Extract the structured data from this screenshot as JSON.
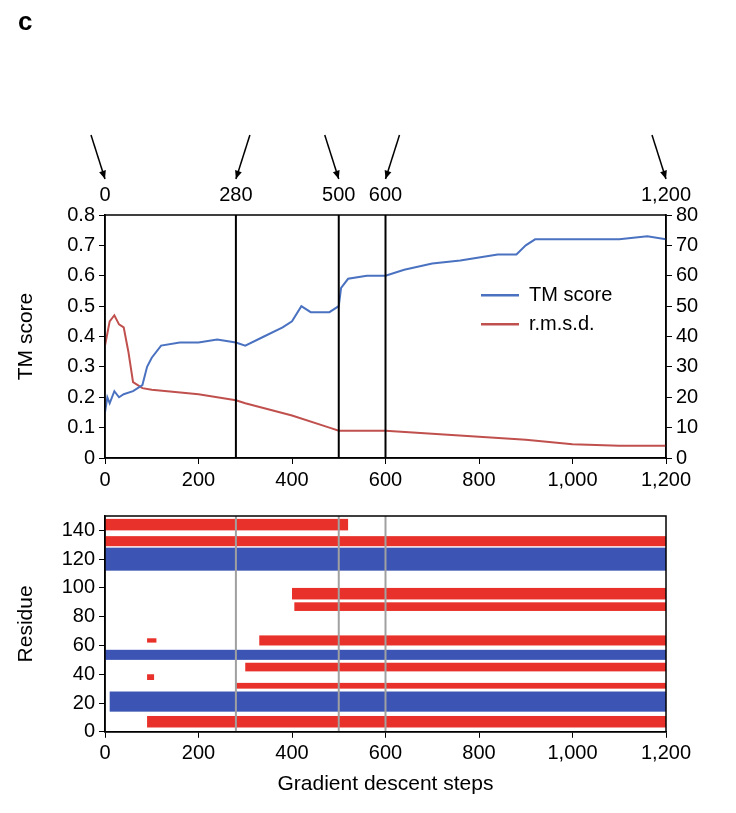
{
  "panel": "c",
  "chart_data": [
    {
      "type": "line",
      "xlim": [
        0,
        1200
      ],
      "xticks": [
        0,
        200,
        400,
        600,
        800,
        {
          "value": 1000,
          "label": "1,000"
        },
        {
          "value": 1200,
          "label": "1,200"
        }
      ],
      "ylim": [
        0,
        0.8
      ],
      "yticks": [
        0,
        0.1,
        0.2,
        0.3,
        0.4,
        0.5,
        0.6,
        0.7,
        0.8
      ],
      "y2lim": [
        0,
        80
      ],
      "y2ticks": [
        0,
        10,
        20,
        30,
        40,
        50,
        60,
        70,
        80
      ],
      "y_label": "TM score",
      "grid": false,
      "legend": "right",
      "vlines": [
        280,
        500,
        600
      ],
      "annotations": [
        {
          "x": 0,
          "label": "0"
        },
        {
          "x": 280,
          "label": "280"
        },
        {
          "x": 500,
          "label": "500"
        },
        {
          "x": 600,
          "label": "600"
        },
        {
          "x": 1200,
          "label": "1,200"
        }
      ],
      "series": [
        {
          "name": "TM score",
          "color": "#4a72c0",
          "x": [
            0,
            5,
            10,
            20,
            30,
            40,
            60,
            80,
            90,
            100,
            120,
            160,
            200,
            240,
            280,
            300,
            340,
            380,
            400,
            420,
            440,
            480,
            500,
            505,
            520,
            560,
            600,
            640,
            700,
            760,
            800,
            840,
            880,
            900,
            920,
            1000,
            1100,
            1160,
            1200
          ],
          "values": [
            0.15,
            0.2,
            0.18,
            0.22,
            0.2,
            0.21,
            0.22,
            0.24,
            0.3,
            0.33,
            0.37,
            0.38,
            0.38,
            0.39,
            0.38,
            0.37,
            0.4,
            0.43,
            0.45,
            0.5,
            0.48,
            0.48,
            0.5,
            0.56,
            0.59,
            0.6,
            0.6,
            0.62,
            0.64,
            0.65,
            0.66,
            0.67,
            0.67,
            0.7,
            0.72,
            0.72,
            0.72,
            0.73,
            0.72
          ]
        },
        {
          "name": "r.m.s.d.",
          "color": "#c0504d",
          "axis": "y2",
          "x": [
            0,
            10,
            20,
            30,
            40,
            50,
            60,
            80,
            100,
            200,
            280,
            300,
            400,
            480,
            500,
            600,
            700,
            800,
            900,
            1000,
            1100,
            1200
          ],
          "values": [
            37,
            45,
            47,
            44,
            43,
            35,
            25,
            23,
            22.5,
            21,
            19,
            18,
            14,
            10,
            9,
            9,
            8,
            7,
            6,
            4.5,
            4,
            4
          ]
        }
      ]
    },
    {
      "type": "segments",
      "x_label": "Gradient descent steps",
      "y_label": "Residue",
      "xlim": [
        0,
        1200
      ],
      "xticks": [
        0,
        200,
        400,
        600,
        800,
        {
          "value": 1000,
          "label": "1,000"
        },
        {
          "value": 1200,
          "label": "1,200"
        }
      ],
      "ylim": [
        0,
        150
      ],
      "yticks": [
        0,
        20,
        40,
        60,
        80,
        100,
        120,
        140
      ],
      "grid": false,
      "vlines": [
        280,
        500,
        600
      ],
      "series": [
        {
          "color": "#3c55b4",
          "segments": [
            {
              "x": [
                10,
                1200
              ],
              "y": [
                14,
                28
              ]
            },
            {
              "x": [
                0,
                1200
              ],
              "y": [
                50,
                57
              ]
            },
            {
              "x": [
                0,
                1200
              ],
              "y": [
                112,
                128
              ]
            }
          ]
        },
        {
          "color": "#e8312a",
          "segments": [
            {
              "x": [
                0,
                520
              ],
              "y": [
                140,
                148
              ]
            },
            {
              "x": [
                0,
                1200
              ],
              "y": [
                129,
                136
              ]
            },
            {
              "x": [
                400,
                1200
              ],
              "y": [
                92,
                100
              ]
            },
            {
              "x": [
                405,
                1200
              ],
              "y": [
                84,
                90
              ]
            },
            {
              "x": [
                330,
                1200
              ],
              "y": [
                60,
                67
              ]
            },
            {
              "x": [
                90,
                110
              ],
              "y": [
                62,
                65
              ]
            },
            {
              "x": [
                300,
                1200
              ],
              "y": [
                42,
                48
              ]
            },
            {
              "x": [
                90,
                105
              ],
              "y": [
                36,
                40
              ]
            },
            {
              "x": [
                280,
                1200
              ],
              "y": [
                30,
                34
              ]
            },
            {
              "x": [
                90,
                1200
              ],
              "y": [
                3,
                11
              ]
            }
          ]
        }
      ]
    }
  ]
}
